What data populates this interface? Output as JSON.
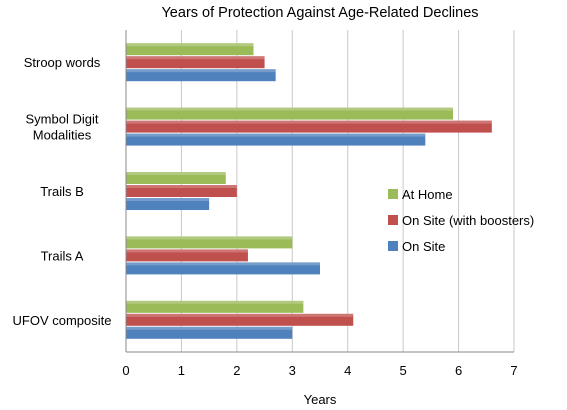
{
  "chart_data": {
    "type": "bar",
    "orientation": "horizontal",
    "title": "Years of Protection Against Age-Related Declines",
    "xlabel": "Years",
    "ylabel": "",
    "xlim": [
      0,
      7
    ],
    "x_ticks": [
      0,
      1,
      2,
      3,
      4,
      5,
      6,
      7
    ],
    "grid": true,
    "legend_position": "right",
    "categories": [
      {
        "line1": "Stroop words",
        "line2": ""
      },
      {
        "line1": "Symbol Digit",
        "line2": "Modalities"
      },
      {
        "line1": "Trails B",
        "line2": ""
      },
      {
        "line1": "Trails A",
        "line2": ""
      },
      {
        "line1": "UFOV composite",
        "line2": ""
      }
    ],
    "series": [
      {
        "name": "At Home",
        "color": "#9bbb59",
        "values": [
          2.3,
          5.9,
          1.8,
          3.0,
          3.2
        ]
      },
      {
        "name": "On Site (with boosters)",
        "color": "#c0504d",
        "values": [
          2.5,
          6.6,
          2.0,
          2.2,
          4.1
        ]
      },
      {
        "name": "On Site",
        "color": "#4f81bd",
        "values": [
          2.7,
          5.4,
          1.5,
          3.5,
          3.0
        ]
      }
    ]
  }
}
